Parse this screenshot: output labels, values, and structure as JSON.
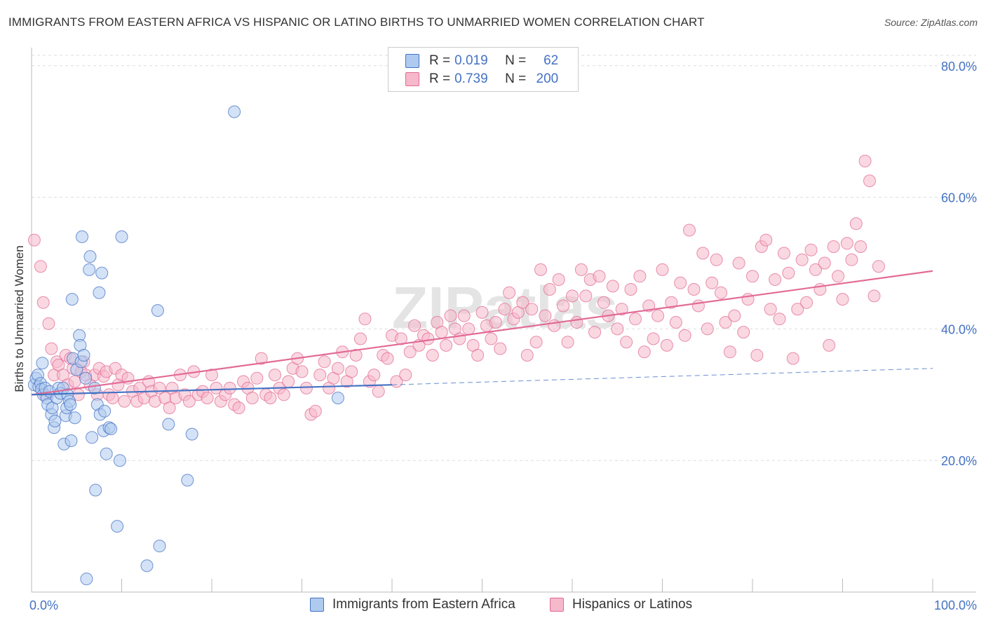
{
  "title": "IMMIGRANTS FROM EASTERN AFRICA VS HISPANIC OR LATINO BIRTHS TO UNMARRIED WOMEN CORRELATION CHART",
  "source": "Source: ZipAtlas.com",
  "watermark": "ZIPatlas",
  "colors": {
    "blue": "#4472c4",
    "blue_fill": "#aecbef",
    "pink": "#e26b96",
    "pink_fill": "#f6b8cb",
    "axis_text": "#4472c4",
    "grid": "#dddddd"
  },
  "legend": {
    "rows": [
      {
        "r_label": "R =",
        "r_value": "0.019",
        "n_label": "N =",
        "n_value": "62"
      },
      {
        "r_label": "R =",
        "r_value": "0.739",
        "n_label": "N =",
        "n_value": "200"
      }
    ]
  },
  "bottom_legend": [
    "Immigrants from Eastern Africa",
    "Hispanics or Latinos"
  ],
  "chart_data": {
    "type": "scatter",
    "title": "IMMIGRANTS FROM EASTERN AFRICA VS HISPANIC OR LATINO BIRTHS TO UNMARRIED WOMEN CORRELATION CHART",
    "xlabel": "",
    "ylabel": "Births to Unmarried Women",
    "xlim": [
      0,
      100
    ],
    "ylim": [
      0,
      82
    ],
    "x_tick_labels": [
      {
        "value": 0,
        "label": "0.0%"
      },
      {
        "value": 100,
        "label": "100.0%"
      }
    ],
    "y_tick_labels": [
      {
        "value": 20,
        "label": "20.0%"
      },
      {
        "value": 40,
        "label": "40.0%"
      },
      {
        "value": 60,
        "label": "60.0%"
      },
      {
        "value": 80,
        "label": "80.0%"
      }
    ],
    "grid": true,
    "series": [
      {
        "name": "Immigrants from Eastern Africa",
        "r": 0.019,
        "n": 62,
        "trend": {
          "x": [
            0,
            40
          ],
          "y": [
            30.0,
            31.5
          ],
          "dashed_to": [
            100,
            34.0
          ]
        },
        "points": [
          [
            0.3,
            31.5
          ],
          [
            0.5,
            32.5
          ],
          [
            0.7,
            33.0
          ],
          [
            0.8,
            31.2
          ],
          [
            1.0,
            31.7
          ],
          [
            1.1,
            30.8
          ],
          [
            1.2,
            34.8
          ],
          [
            1.3,
            30.0
          ],
          [
            1.5,
            31.0
          ],
          [
            1.7,
            29.5
          ],
          [
            1.8,
            28.5
          ],
          [
            2.0,
            30.5
          ],
          [
            2.2,
            27.0
          ],
          [
            2.3,
            28.0
          ],
          [
            2.5,
            25.0
          ],
          [
            2.6,
            26.0
          ],
          [
            2.8,
            29.5
          ],
          [
            3.0,
            31.0
          ],
          [
            3.2,
            30.2
          ],
          [
            3.5,
            31.0
          ],
          [
            3.6,
            22.5
          ],
          [
            3.8,
            26.8
          ],
          [
            3.9,
            28.0
          ],
          [
            4.0,
            30.0
          ],
          [
            4.2,
            29.0
          ],
          [
            4.3,
            28.5
          ],
          [
            4.4,
            23.0
          ],
          [
            4.5,
            44.5
          ],
          [
            4.6,
            35.5
          ],
          [
            4.8,
            26.5
          ],
          [
            5.0,
            33.8
          ],
          [
            5.3,
            39.0
          ],
          [
            5.4,
            37.5
          ],
          [
            5.5,
            35.0
          ],
          [
            5.6,
            54.0
          ],
          [
            5.8,
            36.0
          ],
          [
            6.0,
            32.5
          ],
          [
            6.1,
            2.0
          ],
          [
            6.4,
            49.0
          ],
          [
            6.5,
            51.0
          ],
          [
            6.7,
            23.5
          ],
          [
            7.0,
            31.0
          ],
          [
            7.1,
            15.5
          ],
          [
            7.3,
            28.5
          ],
          [
            7.5,
            45.5
          ],
          [
            7.6,
            27.0
          ],
          [
            7.8,
            48.5
          ],
          [
            8.0,
            24.5
          ],
          [
            8.1,
            27.5
          ],
          [
            8.3,
            21.0
          ],
          [
            8.6,
            25.0
          ],
          [
            8.8,
            24.8
          ],
          [
            9.5,
            10.0
          ],
          [
            9.8,
            20.0
          ],
          [
            10.0,
            54.0
          ],
          [
            12.8,
            4.0
          ],
          [
            14.2,
            7.0
          ],
          [
            14.0,
            42.8
          ],
          [
            15.2,
            25.5
          ],
          [
            17.3,
            17.0
          ],
          [
            17.8,
            24.0
          ],
          [
            22.5,
            73.0
          ],
          [
            34.0,
            29.5
          ]
        ]
      },
      {
        "name": "Hispanics or Latinos",
        "r": 0.739,
        "n": 200,
        "trend": {
          "x": [
            0,
            100
          ],
          "y": [
            30.0,
            48.8
          ]
        },
        "points": [
          [
            0.3,
            53.5
          ],
          [
            1.0,
            49.5
          ],
          [
            1.3,
            44.0
          ],
          [
            1.5,
            30.0
          ],
          [
            1.9,
            40.8
          ],
          [
            2.2,
            37.0
          ],
          [
            2.5,
            33.0
          ],
          [
            2.8,
            35.0
          ],
          [
            3.0,
            34.5
          ],
          [
            3.5,
            33.0
          ],
          [
            3.8,
            36.0
          ],
          [
            4.0,
            31.5
          ],
          [
            4.3,
            35.5
          ],
          [
            4.6,
            34.0
          ],
          [
            4.8,
            32.0
          ],
          [
            5.2,
            30.0
          ],
          [
            5.5,
            33.5
          ],
          [
            5.8,
            35.0
          ],
          [
            6.0,
            33.0
          ],
          [
            6.5,
            31.5
          ],
          [
            7.0,
            33.0
          ],
          [
            7.3,
            30.0
          ],
          [
            7.5,
            34.0
          ],
          [
            8.0,
            32.8
          ],
          [
            8.3,
            33.5
          ],
          [
            8.6,
            30.0
          ],
          [
            9.0,
            29.5
          ],
          [
            9.3,
            34.0
          ],
          [
            9.6,
            31.5
          ],
          [
            10.0,
            33.0
          ],
          [
            10.3,
            29.0
          ],
          [
            10.7,
            32.5
          ],
          [
            11.2,
            30.5
          ],
          [
            11.7,
            29.0
          ],
          [
            12.0,
            31.0
          ],
          [
            12.5,
            29.5
          ],
          [
            13.0,
            32.0
          ],
          [
            13.3,
            30.5
          ],
          [
            13.7,
            29.0
          ],
          [
            14.2,
            31.0
          ],
          [
            14.8,
            29.5
          ],
          [
            15.3,
            28.0
          ],
          [
            15.6,
            31.0
          ],
          [
            16.0,
            29.5
          ],
          [
            16.5,
            33.0
          ],
          [
            17.0,
            30.0
          ],
          [
            17.5,
            29.0
          ],
          [
            18.0,
            33.5
          ],
          [
            18.5,
            30.0
          ],
          [
            19.0,
            30.5
          ],
          [
            19.5,
            29.5
          ],
          [
            20.0,
            33.0
          ],
          [
            20.5,
            31.0
          ],
          [
            21.0,
            29.0
          ],
          [
            21.5,
            30.0
          ],
          [
            22.0,
            31.0
          ],
          [
            22.5,
            28.5
          ],
          [
            23.0,
            28.0
          ],
          [
            23.5,
            32.0
          ],
          [
            24.0,
            31.0
          ],
          [
            24.5,
            29.5
          ],
          [
            25.0,
            32.5
          ],
          [
            25.5,
            35.5
          ],
          [
            26.0,
            30.0
          ],
          [
            26.5,
            29.5
          ],
          [
            27.0,
            33.0
          ],
          [
            27.5,
            31.0
          ],
          [
            28.0,
            30.0
          ],
          [
            28.5,
            32.0
          ],
          [
            29.0,
            34.0
          ],
          [
            29.5,
            35.5
          ],
          [
            30.0,
            33.5
          ],
          [
            30.5,
            31.0
          ],
          [
            31.0,
            27.0
          ],
          [
            31.5,
            27.5
          ],
          [
            32.0,
            33.0
          ],
          [
            32.5,
            35.0
          ],
          [
            33.0,
            31.0
          ],
          [
            33.5,
            32.5
          ],
          [
            34.0,
            34.0
          ],
          [
            34.5,
            36.5
          ],
          [
            35.0,
            32.0
          ],
          [
            35.5,
            33.5
          ],
          [
            36.0,
            36.0
          ],
          [
            36.5,
            38.5
          ],
          [
            37.0,
            41.5
          ],
          [
            37.5,
            32.0
          ],
          [
            38.0,
            33.0
          ],
          [
            38.5,
            30.5
          ],
          [
            39.0,
            36.0
          ],
          [
            39.5,
            35.5
          ],
          [
            40.0,
            39.0
          ],
          [
            40.5,
            32.0
          ],
          [
            41.0,
            38.5
          ],
          [
            41.5,
            33.0
          ],
          [
            42.0,
            36.5
          ],
          [
            42.5,
            40.5
          ],
          [
            43.0,
            37.5
          ],
          [
            43.5,
            39.0
          ],
          [
            44.0,
            38.5
          ],
          [
            44.5,
            36.0
          ],
          [
            45.0,
            41.0
          ],
          [
            45.5,
            39.5
          ],
          [
            46.0,
            37.5
          ],
          [
            46.5,
            42.0
          ],
          [
            47.0,
            40.0
          ],
          [
            47.5,
            38.5
          ],
          [
            48.0,
            42.0
          ],
          [
            48.5,
            40.0
          ],
          [
            49.0,
            37.5
          ],
          [
            49.5,
            36.0
          ],
          [
            50.0,
            42.5
          ],
          [
            50.5,
            40.5
          ],
          [
            51.0,
            38.5
          ],
          [
            51.5,
            41.0
          ],
          [
            52.0,
            37.0
          ],
          [
            52.5,
            43.0
          ],
          [
            53.0,
            45.5
          ],
          [
            53.5,
            41.5
          ],
          [
            54.0,
            42.5
          ],
          [
            54.5,
            44.0
          ],
          [
            55.0,
            36.0
          ],
          [
            55.5,
            43.0
          ],
          [
            56.0,
            38.0
          ],
          [
            56.5,
            49.0
          ],
          [
            57.0,
            42.0
          ],
          [
            57.5,
            46.0
          ],
          [
            58.0,
            40.5
          ],
          [
            58.5,
            47.5
          ],
          [
            59.0,
            43.5
          ],
          [
            59.5,
            38.0
          ],
          [
            60.0,
            45.0
          ],
          [
            60.5,
            41.0
          ],
          [
            61.0,
            49.0
          ],
          [
            61.5,
            45.0
          ],
          [
            62.0,
            47.5
          ],
          [
            62.5,
            39.5
          ],
          [
            63.0,
            48.0
          ],
          [
            63.5,
            44.0
          ],
          [
            64.0,
            42.0
          ],
          [
            64.5,
            46.5
          ],
          [
            65.0,
            40.0
          ],
          [
            65.5,
            43.0
          ],
          [
            66.0,
            38.0
          ],
          [
            66.5,
            46.0
          ],
          [
            67.0,
            41.5
          ],
          [
            67.5,
            48.0
          ],
          [
            68.0,
            36.5
          ],
          [
            68.5,
            43.5
          ],
          [
            69.0,
            38.5
          ],
          [
            69.5,
            42.0
          ],
          [
            70.0,
            49.0
          ],
          [
            70.5,
            37.5
          ],
          [
            71.0,
            44.0
          ],
          [
            71.5,
            41.0
          ],
          [
            72.0,
            47.0
          ],
          [
            72.5,
            39.0
          ],
          [
            73.0,
            55.0
          ],
          [
            73.5,
            46.0
          ],
          [
            74.0,
            43.5
          ],
          [
            74.5,
            51.5
          ],
          [
            75.0,
            40.0
          ],
          [
            75.5,
            47.0
          ],
          [
            76.0,
            50.5
          ],
          [
            76.5,
            45.5
          ],
          [
            77.0,
            41.0
          ],
          [
            77.5,
            36.5
          ],
          [
            78.0,
            42.0
          ],
          [
            78.5,
            50.0
          ],
          [
            79.0,
            39.5
          ],
          [
            79.5,
            44.5
          ],
          [
            80.0,
            48.0
          ],
          [
            80.5,
            36.0
          ],
          [
            81.0,
            52.5
          ],
          [
            81.5,
            53.5
          ],
          [
            82.0,
            43.0
          ],
          [
            82.5,
            47.5
          ],
          [
            83.0,
            41.5
          ],
          [
            83.5,
            51.5
          ],
          [
            84.0,
            48.5
          ],
          [
            84.5,
            35.5
          ],
          [
            85.0,
            43.0
          ],
          [
            85.5,
            50.5
          ],
          [
            86.0,
            44.0
          ],
          [
            86.5,
            52.0
          ],
          [
            87.0,
            49.0
          ],
          [
            87.5,
            46.0
          ],
          [
            88.0,
            50.0
          ],
          [
            88.5,
            37.5
          ],
          [
            89.0,
            52.5
          ],
          [
            89.5,
            48.0
          ],
          [
            90.0,
            44.5
          ],
          [
            90.5,
            53.0
          ],
          [
            91.0,
            50.5
          ],
          [
            91.5,
            56.0
          ],
          [
            92.0,
            52.5
          ],
          [
            92.5,
            65.5
          ],
          [
            93.0,
            62.5
          ],
          [
            93.5,
            45.0
          ],
          [
            94.0,
            49.5
          ]
        ]
      }
    ]
  }
}
